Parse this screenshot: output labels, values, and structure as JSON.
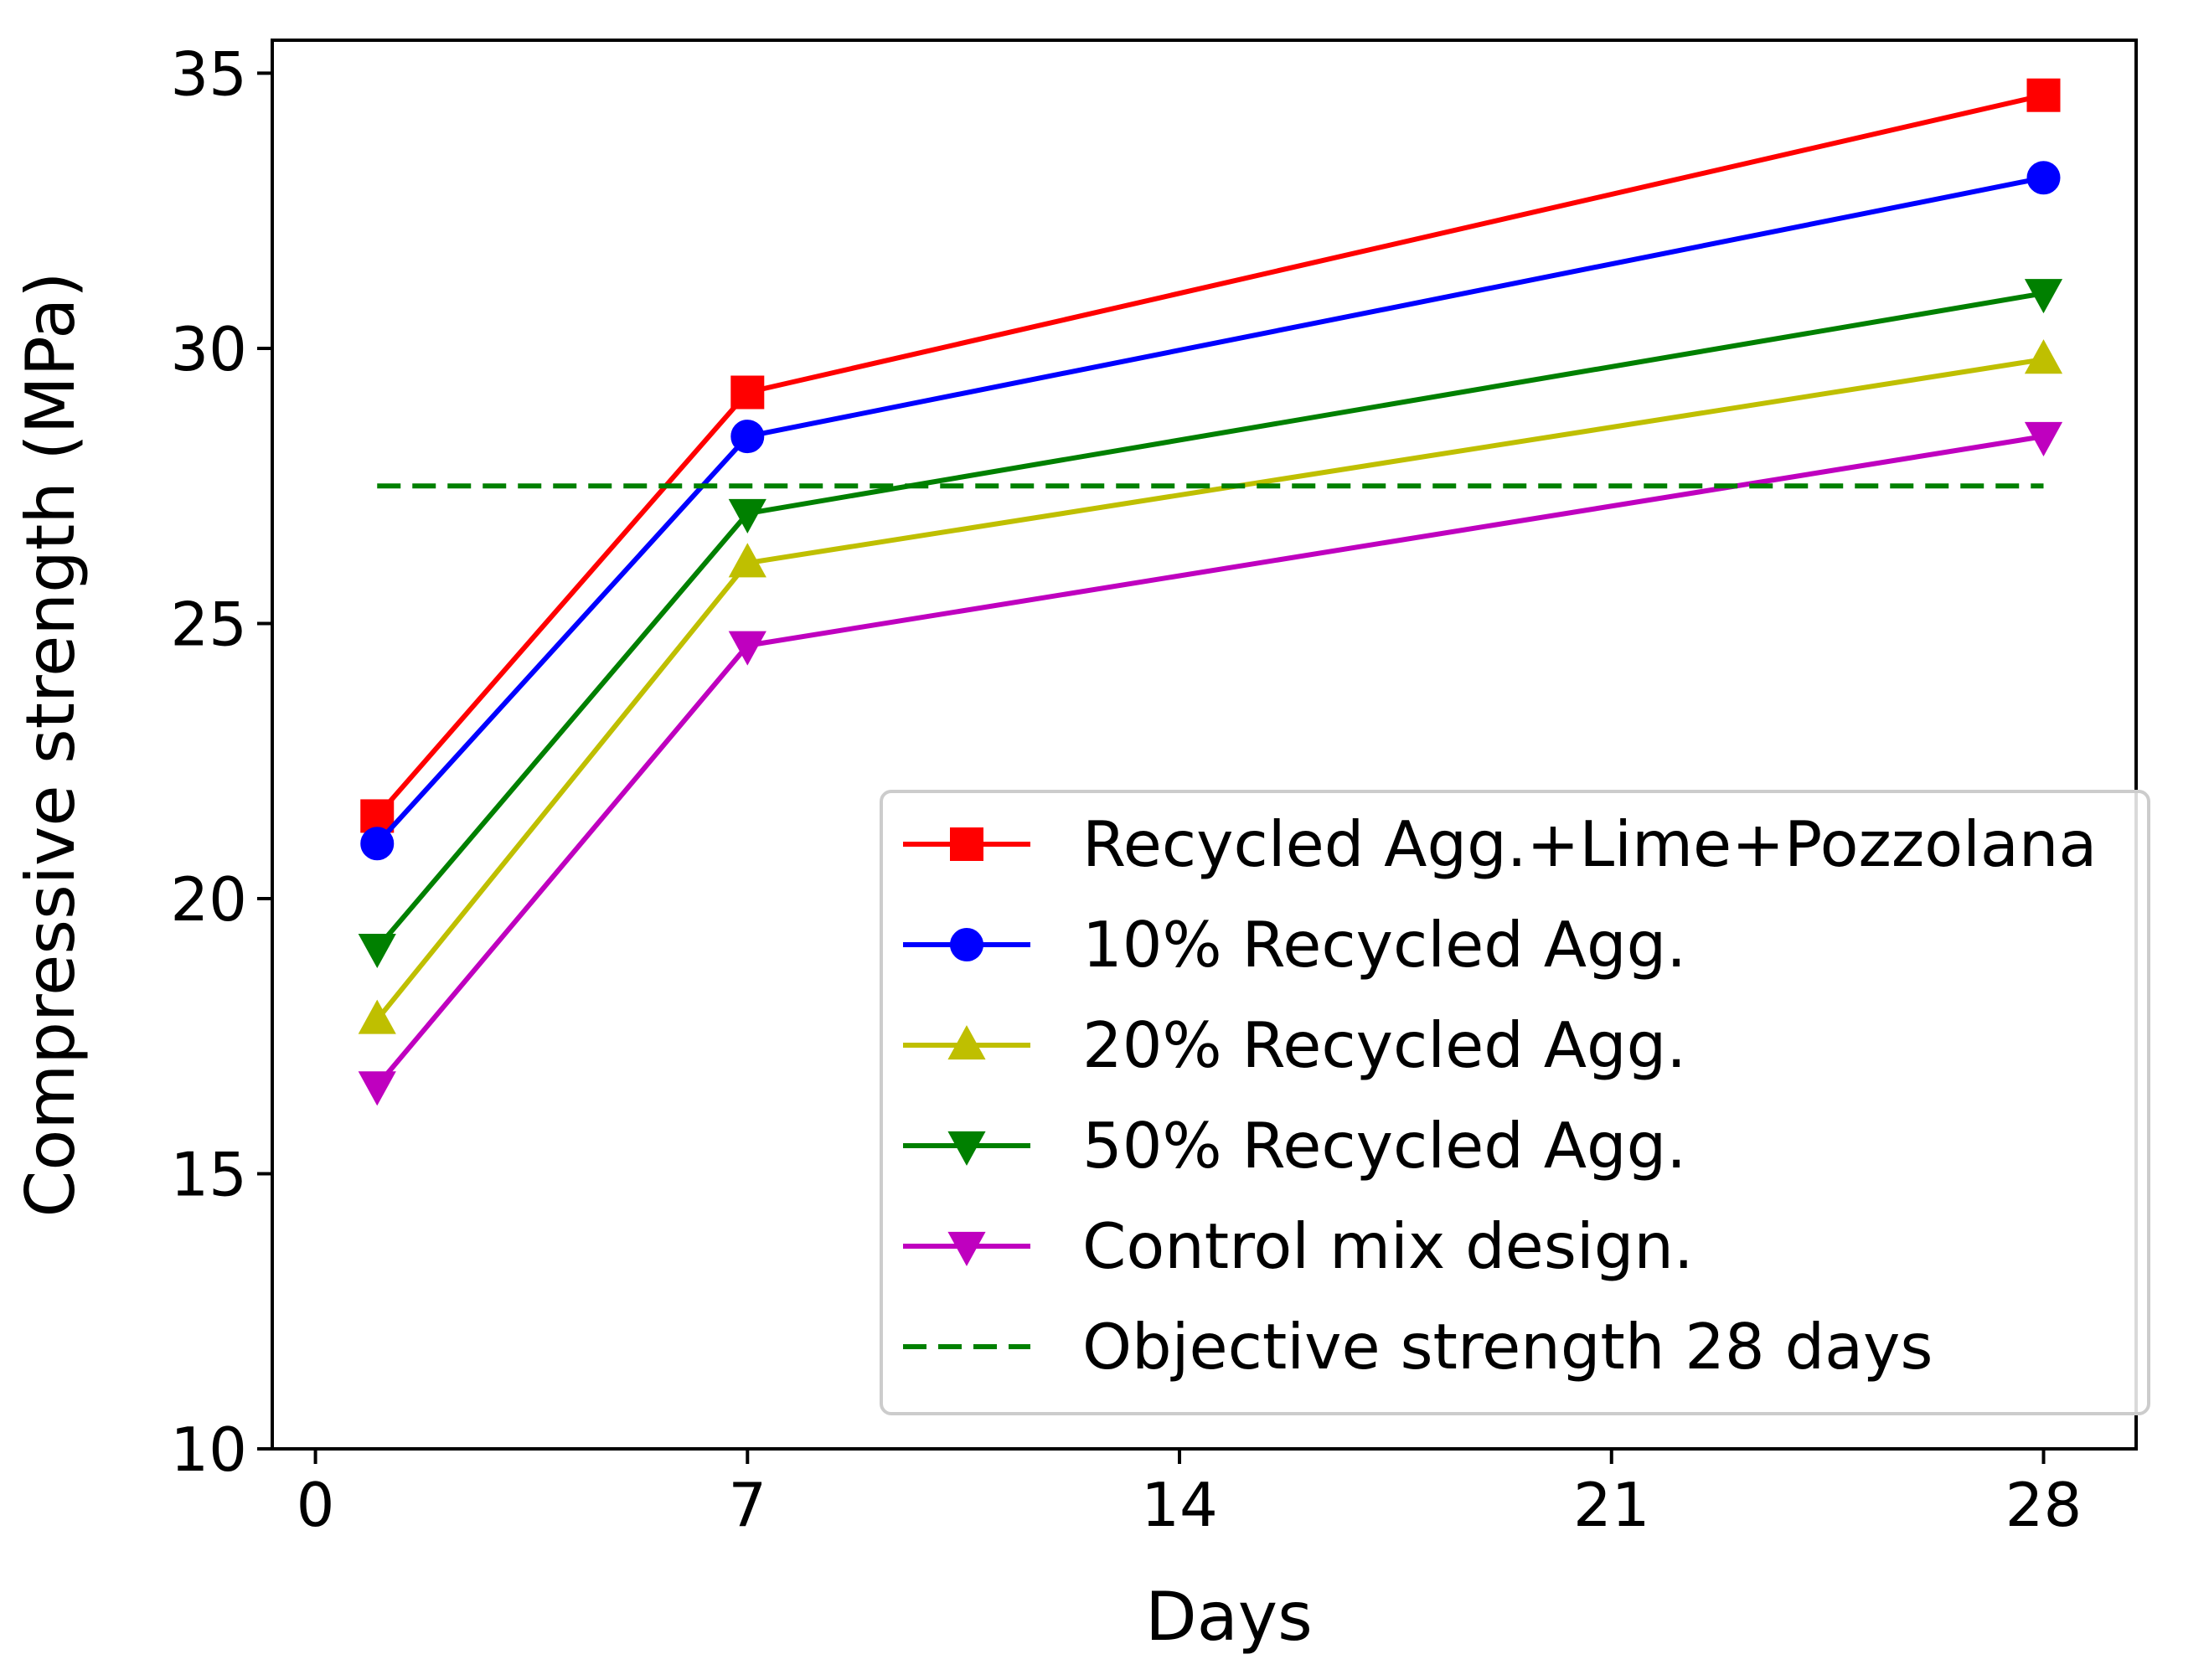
{
  "chart_data": {
    "type": "line",
    "title": "",
    "xlabel": "Days",
    "ylabel": "Compressive strength (MPa)",
    "xlim": [
      -0.7,
      29.5
    ],
    "ylim": [
      10,
      35.6
    ],
    "xticks": [
      0,
      7,
      14,
      21,
      28
    ],
    "xtick_labels": [
      "0",
      "7",
      "14",
      "21",
      "28"
    ],
    "yticks": [
      10,
      15,
      20,
      25,
      30,
      35
    ],
    "ytick_labels": [
      "10",
      "15",
      "20",
      "25",
      "30",
      "35"
    ],
    "legend_position": "lower-right",
    "series": [
      {
        "name": "Recycled Agg.+Lime+Pozzolana",
        "color": "#ff0000",
        "marker": "square",
        "linestyle": "solid",
        "x": [
          1,
          7,
          28
        ],
        "values": [
          21.5,
          29.2,
          34.6
        ]
      },
      {
        "name": "10% Recycled Agg.",
        "color": "#0000ff",
        "marker": "circle",
        "linestyle": "solid",
        "x": [
          1,
          7,
          28
        ],
        "values": [
          21.0,
          28.4,
          33.1
        ]
      },
      {
        "name": "20% Recycled Agg.",
        "color": "#bfbf00",
        "marker": "triangle-up",
        "linestyle": "solid",
        "x": [
          1,
          7,
          28
        ],
        "values": [
          17.8,
          26.1,
          29.8
        ]
      },
      {
        "name": "50% Recycled Agg.",
        "color": "#008000",
        "marker": "triangle-down",
        "linestyle": "solid",
        "x": [
          1,
          7,
          28
        ],
        "values": [
          19.1,
          27.0,
          31.0
        ]
      },
      {
        "name": "Control mix design.",
        "color": "#bf00bf",
        "marker": "triangle-down",
        "linestyle": "solid",
        "x": [
          1,
          7,
          28
        ],
        "values": [
          16.6,
          24.6,
          28.4
        ]
      },
      {
        "name": "Objective strength 28 days",
        "color": "#008000",
        "marker": "none",
        "linestyle": "dashed",
        "x": [
          1,
          28
        ],
        "values": [
          27.5,
          27.5
        ]
      }
    ]
  }
}
